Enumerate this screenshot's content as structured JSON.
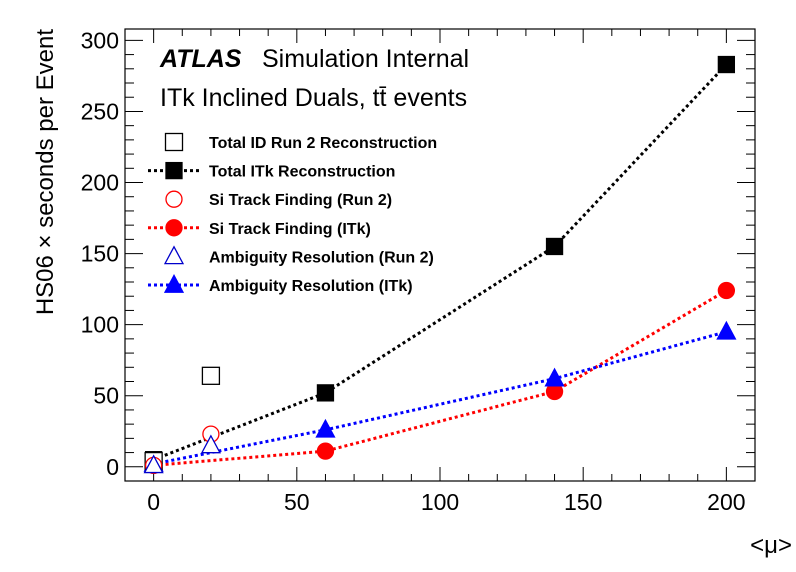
{
  "chart_data": {
    "type": "scatter",
    "xlabel": "<μ>",
    "ylabel": "HS06 × seconds per Event",
    "xlim": [
      -10,
      210
    ],
    "ylim": [
      -10,
      308
    ],
    "xticks": [
      0,
      50,
      100,
      150,
      200
    ],
    "yticks": [
      0,
      50,
      100,
      150,
      200,
      250,
      300
    ],
    "xtick_labels": [
      "0",
      "50",
      "100",
      "150",
      "200"
    ],
    "ytick_labels": [
      "0",
      "50",
      "100",
      "150",
      "200",
      "250",
      "300"
    ],
    "grid": false,
    "legend_position": "top-left",
    "annotation": {
      "atlas": "ATLAS",
      "status": "Simulation Internal",
      "subtitle": "ITk Inclined Duals, tt̄ events"
    },
    "series": [
      {
        "name": "Total ID Run 2 Reconstruction",
        "marker": "square-open",
        "line": false,
        "color": "#000000",
        "points": [
          {
            "x": 0,
            "y": 4
          },
          {
            "x": 20,
            "y": 64
          }
        ]
      },
      {
        "name": "Total ITk Reconstruction",
        "marker": "square-filled",
        "line": true,
        "color": "#000000",
        "points": [
          {
            "x": 0,
            "y": 5
          },
          {
            "x": 60,
            "y": 52
          },
          {
            "x": 140,
            "y": 155
          },
          {
            "x": 200,
            "y": 283
          }
        ]
      },
      {
        "name": "Si Track Finding (Run 2)",
        "marker": "circle-open",
        "line": false,
        "color": "#ff0000",
        "points": [
          {
            "x": 0,
            "y": 1
          },
          {
            "x": 20,
            "y": 23
          }
        ]
      },
      {
        "name": "Si Track Finding (ITk)",
        "marker": "circle-filled",
        "line": true,
        "color": "#ff0000",
        "points": [
          {
            "x": 0,
            "y": 1
          },
          {
            "x": 60,
            "y": 11
          },
          {
            "x": 140,
            "y": 53
          },
          {
            "x": 200,
            "y": 124
          }
        ]
      },
      {
        "name": "Ambiguity Resolution (Run 2)",
        "marker": "triangle-open",
        "line": false,
        "color": "#0000cc",
        "points": [
          {
            "x": 0,
            "y": 1
          },
          {
            "x": 20,
            "y": 15
          }
        ]
      },
      {
        "name": "Ambiguity Resolution (ITk)",
        "marker": "triangle-filled",
        "line": true,
        "color": "#0000ff",
        "points": [
          {
            "x": 0,
            "y": 2
          },
          {
            "x": 60,
            "y": 26
          },
          {
            "x": 140,
            "y": 62
          },
          {
            "x": 200,
            "y": 95
          }
        ]
      }
    ]
  }
}
